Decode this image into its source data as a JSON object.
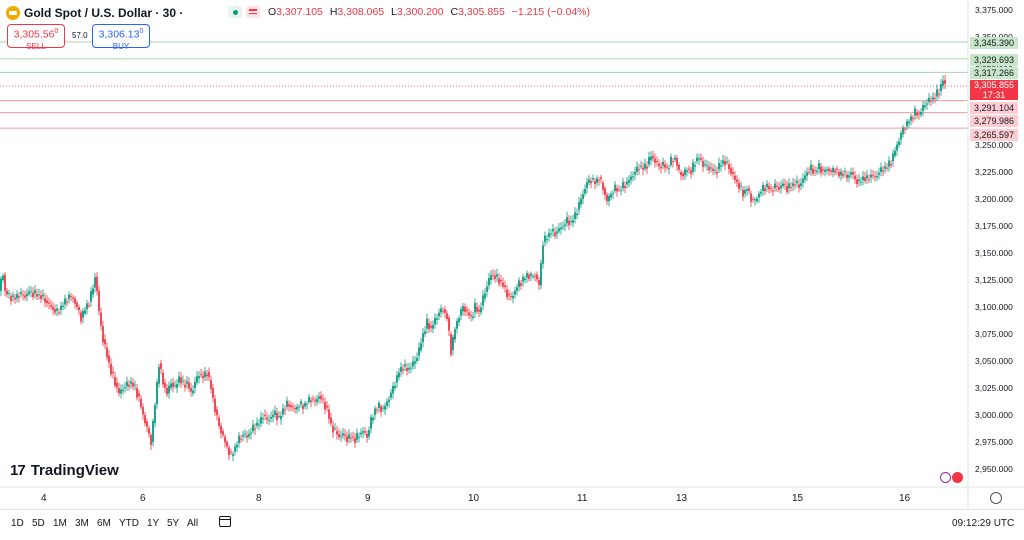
{
  "header": {
    "symbol_title": "Gold Spot / U.S. Dollar · 30 ·",
    "ohlc": {
      "o_label": "O",
      "o": "3,307.105",
      "h_label": "H",
      "h": "3,308.065",
      "l_label": "L",
      "l": "3,300.200",
      "c_label": "C",
      "c": "3,305.855",
      "change": "−1.215 (−0.04%)"
    }
  },
  "trade": {
    "sell_price": "3,305.56",
    "sell_sup": "0",
    "sell_label": "SELL",
    "spread": "57.0",
    "buy_price": "3,306.13",
    "buy_sup": "0",
    "buy_label": "BUY"
  },
  "price_axis": {
    "ticks": [
      "3,375.000",
      "3,350.000",
      "3,325.000",
      "3,300.000",
      "3,275.000",
      "3,250.000",
      "3,225.000",
      "3,200.000",
      "3,175.000",
      "3,150.000",
      "3,125.000",
      "3,100.000",
      "3,075.000",
      "3,050.000",
      "3,025.000",
      "3,000.000",
      "2,975.000",
      "2,950.000"
    ],
    "levels_green": [
      "3,345.390",
      "3,329.693",
      "3,317.266"
    ],
    "levels_red": [
      "3,291.104",
      "3,279.986",
      "3,265.597"
    ],
    "current_price": "3,305.855",
    "countdown": "17:31"
  },
  "time_axis": {
    "labels": [
      "4",
      "6",
      "8",
      "9",
      "10",
      "11",
      "13",
      "15",
      "16"
    ]
  },
  "branding": {
    "logo_text": "TradingView"
  },
  "bottom": {
    "ranges": [
      "1D",
      "5D",
      "1M",
      "3M",
      "6M",
      "YTD",
      "1Y",
      "5Y",
      "All"
    ],
    "clock": "09:12:29 UTC"
  },
  "colors": {
    "up": "#089981",
    "down": "#f23645",
    "level_green": "#a5d6a7",
    "level_red": "#ef9a9a"
  },
  "chart_data": {
    "type": "candlestick",
    "ylim": [
      2945,
      3380
    ],
    "price_points": [
      [
        0,
        3115
      ],
      [
        2,
        3125
      ],
      [
        4,
        3130
      ],
      [
        6,
        3115
      ],
      [
        10,
        3110
      ],
      [
        16,
        3108
      ],
      [
        20,
        3112
      ],
      [
        26,
        3110
      ],
      [
        30,
        3114
      ],
      [
        36,
        3112
      ],
      [
        42,
        3110
      ],
      [
        48,
        3104
      ],
      [
        54,
        3098
      ],
      [
        58,
        3095
      ],
      [
        62,
        3100
      ],
      [
        66,
        3105
      ],
      [
        70,
        3110
      ],
      [
        74,
        3108
      ],
      [
        78,
        3100
      ],
      [
        82,
        3090
      ],
      [
        86,
        3098
      ],
      [
        90,
        3105
      ],
      [
        94,
        3118
      ],
      [
        96,
        3128
      ],
      [
        98,
        3115
      ],
      [
        100,
        3095
      ],
      [
        104,
        3070
      ],
      [
        108,
        3055
      ],
      [
        112,
        3040
      ],
      [
        116,
        3030
      ],
      [
        120,
        3020
      ],
      [
        124,
        3025
      ],
      [
        128,
        3028
      ],
      [
        132,
        3030
      ],
      [
        136,
        3025
      ],
      [
        140,
        3015
      ],
      [
        144,
        3000
      ],
      [
        148,
        2988
      ],
      [
        152,
        2975
      ],
      [
        156,
        3010
      ],
      [
        160,
        3048
      ],
      [
        164,
        3030
      ],
      [
        168,
        3020
      ],
      [
        172,
        3030
      ],
      [
        176,
        3025
      ],
      [
        180,
        3035
      ],
      [
        184,
        3028
      ],
      [
        188,
        3030
      ],
      [
        192,
        3020
      ],
      [
        196,
        3030
      ],
      [
        200,
        3038
      ],
      [
        204,
        3035
      ],
      [
        208,
        3040
      ],
      [
        212,
        3025
      ],
      [
        216,
        3005
      ],
      [
        220,
        2990
      ],
      [
        224,
        2980
      ],
      [
        228,
        2970
      ],
      [
        232,
        2962
      ],
      [
        236,
        2970
      ],
      [
        240,
        2978
      ],
      [
        244,
        2982
      ],
      [
        248,
        2980
      ],
      [
        252,
        2985
      ],
      [
        256,
        2990
      ],
      [
        260,
        2992
      ],
      [
        264,
        3000
      ],
      [
        268,
        2995
      ],
      [
        272,
        2998
      ],
      [
        276,
        3002
      ],
      [
        280,
        2996
      ],
      [
        284,
        3005
      ],
      [
        288,
        3010
      ],
      [
        292,
        3008
      ],
      [
        296,
        3005
      ],
      [
        300,
        3010
      ],
      [
        304,
        3008
      ],
      [
        308,
        3012
      ],
      [
        312,
        3015
      ],
      [
        316,
        3012
      ],
      [
        320,
        3018
      ],
      [
        324,
        3012
      ],
      [
        328,
        3005
      ],
      [
        332,
        2990
      ],
      [
        336,
        2985
      ],
      [
        340,
        2980
      ],
      [
        344,
        2982
      ],
      [
        348,
        2978
      ],
      [
        352,
        2980
      ],
      [
        356,
        2977
      ],
      [
        360,
        2982
      ],
      [
        364,
        2985
      ],
      [
        368,
        2980
      ],
      [
        372,
        2995
      ],
      [
        376,
        3005
      ],
      [
        380,
        3008
      ],
      [
        384,
        3005
      ],
      [
        388,
        3012
      ],
      [
        392,
        3020
      ],
      [
        396,
        3030
      ],
      [
        400,
        3040
      ],
      [
        404,
        3045
      ],
      [
        408,
        3042
      ],
      [
        412,
        3045
      ],
      [
        416,
        3050
      ],
      [
        420,
        3060
      ],
      [
        424,
        3075
      ],
      [
        428,
        3085
      ],
      [
        432,
        3080
      ],
      [
        436,
        3088
      ],
      [
        440,
        3095
      ],
      [
        444,
        3098
      ],
      [
        448,
        3090
      ],
      [
        452,
        3060
      ],
      [
        456,
        3080
      ],
      [
        460,
        3092
      ],
      [
        464,
        3100
      ],
      [
        468,
        3095
      ],
      [
        472,
        3090
      ],
      [
        476,
        3100
      ],
      [
        480,
        3095
      ],
      [
        484,
        3108
      ],
      [
        488,
        3120
      ],
      [
        492,
        3130
      ],
      [
        496,
        3128
      ],
      [
        500,
        3125
      ],
      [
        504,
        3120
      ],
      [
        508,
        3112
      ],
      [
        512,
        3108
      ],
      [
        516,
        3115
      ],
      [
        520,
        3122
      ],
      [
        524,
        3125
      ],
      [
        528,
        3130
      ],
      [
        532,
        3128
      ],
      [
        536,
        3130
      ],
      [
        540,
        3120
      ],
      [
        542,
        3140
      ],
      [
        544,
        3160
      ],
      [
        548,
        3165
      ],
      [
        552,
        3170
      ],
      [
        556,
        3168
      ],
      [
        560,
        3172
      ],
      [
        564,
        3175
      ],
      [
        568,
        3180
      ],
      [
        572,
        3178
      ],
      [
        576,
        3185
      ],
      [
        580,
        3195
      ],
      [
        584,
        3205
      ],
      [
        588,
        3215
      ],
      [
        592,
        3218
      ],
      [
        596,
        3215
      ],
      [
        600,
        3220
      ],
      [
        604,
        3210
      ],
      [
        608,
        3198
      ],
      [
        612,
        3205
      ],
      [
        616,
        3210
      ],
      [
        620,
        3208
      ],
      [
        624,
        3212
      ],
      [
        628,
        3215
      ],
      [
        632,
        3220
      ],
      [
        636,
        3225
      ],
      [
        640,
        3230
      ],
      [
        644,
        3228
      ],
      [
        648,
        3232
      ],
      [
        652,
        3240
      ],
      [
        656,
        3235
      ],
      [
        660,
        3230
      ],
      [
        664,
        3232
      ],
      [
        668,
        3228
      ],
      [
        672,
        3235
      ],
      [
        676,
        3238
      ],
      [
        680,
        3225
      ],
      [
        684,
        3222
      ],
      [
        688,
        3228
      ],
      [
        692,
        3225
      ],
      [
        696,
        3235
      ],
      [
        700,
        3238
      ],
      [
        704,
        3232
      ],
      [
        708,
        3230
      ],
      [
        712,
        3228
      ],
      [
        716,
        3225
      ],
      [
        720,
        3230
      ],
      [
        724,
        3235
      ],
      [
        728,
        3232
      ],
      [
        732,
        3225
      ],
      [
        736,
        3218
      ],
      [
        740,
        3212
      ],
      [
        744,
        3205
      ],
      [
        748,
        3210
      ],
      [
        752,
        3200
      ],
      [
        756,
        3198
      ],
      [
        760,
        3205
      ],
      [
        764,
        3210
      ],
      [
        768,
        3212
      ],
      [
        772,
        3208
      ],
      [
        776,
        3212
      ],
      [
        780,
        3210
      ],
      [
        784,
        3214
      ],
      [
        788,
        3210
      ],
      [
        792,
        3212
      ],
      [
        796,
        3215
      ],
      [
        800,
        3212
      ],
      [
        804,
        3218
      ],
      [
        808,
        3225
      ],
      [
        812,
        3228
      ],
      [
        816,
        3225
      ],
      [
        820,
        3230
      ],
      [
        824,
        3225
      ],
      [
        828,
        3228
      ],
      [
        832,
        3225
      ],
      [
        836,
        3228
      ],
      [
        840,
        3222
      ],
      [
        844,
        3225
      ],
      [
        848,
        3220
      ],
      [
        852,
        3225
      ],
      [
        856,
        3218
      ],
      [
        860,
        3215
      ],
      [
        864,
        3220
      ],
      [
        868,
        3218
      ],
      [
        872,
        3222
      ],
      [
        876,
        3220
      ],
      [
        880,
        3225
      ],
      [
        884,
        3228
      ],
      [
        888,
        3230
      ],
      [
        892,
        3235
      ],
      [
        896,
        3245
      ],
      [
        900,
        3255
      ],
      [
        904,
        3265
      ],
      [
        908,
        3270
      ],
      [
        912,
        3275
      ],
      [
        916,
        3280
      ],
      [
        920,
        3278
      ],
      [
        924,
        3285
      ],
      [
        928,
        3290
      ],
      [
        932,
        3292
      ],
      [
        936,
        3295
      ],
      [
        940,
        3300
      ],
      [
        944,
        3310
      ],
      [
        946,
        3305
      ]
    ],
    "x_tick_labels": [
      "4",
      "6",
      "8",
      "9",
      "10",
      "11",
      "13",
      "15",
      "16"
    ]
  }
}
